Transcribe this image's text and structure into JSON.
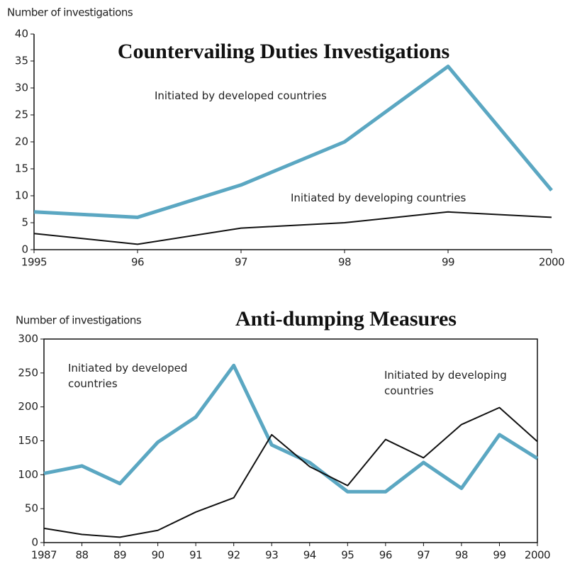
{
  "chart_data": [
    {
      "type": "line",
      "title": "Countervailing Duties Investigations",
      "y_axis_label": "Number of investigations",
      "categories": [
        "1995",
        "96",
        "97",
        "98",
        "99",
        "2000"
      ],
      "series": [
        {
          "name": "Initiated by developed countries",
          "color": "#5ba7c2",
          "values": [
            7,
            6,
            12,
            20,
            34,
            11
          ]
        },
        {
          "name": "Initiated by developing countries",
          "color": "#111111",
          "values": [
            3,
            1,
            4,
            5,
            7,
            6
          ]
        }
      ],
      "ylim": [
        0,
        40
      ],
      "yticks": [
        0,
        5,
        10,
        15,
        20,
        25,
        30,
        35,
        40
      ]
    },
    {
      "type": "line",
      "title": "Anti-dumping Measures",
      "y_axis_label": "Number of investigations",
      "categories": [
        "1987",
        "88",
        "89",
        "90",
        "91",
        "92",
        "93",
        "94",
        "95",
        "96",
        "97",
        "98",
        "99",
        "2000"
      ],
      "series": [
        {
          "name": "Initiated by developed countries",
          "color": "#5ba7c2",
          "values": [
            102,
            113,
            87,
            148,
            185,
            261,
            144,
            118,
            75,
            75,
            118,
            80,
            159,
            124
          ]
        },
        {
          "name": "Initiated by developing countries",
          "color": "#111111",
          "values": [
            21,
            12,
            8,
            18,
            45,
            66,
            159,
            112,
            84,
            152,
            125,
            174,
            199,
            149
          ]
        }
      ],
      "ylim": [
        0,
        300
      ],
      "yticks": [
        0,
        50,
        100,
        150,
        200,
        250,
        300
      ]
    }
  ]
}
